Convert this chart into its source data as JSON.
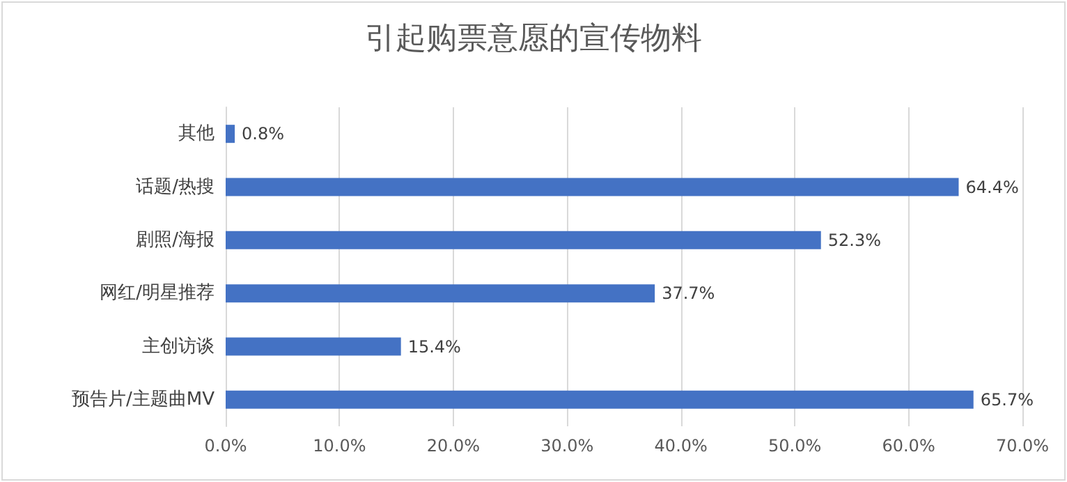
{
  "chart_data": {
    "type": "bar",
    "orientation": "horizontal",
    "title": "引起购票意愿的宣传物料",
    "categories": [
      "其他",
      "话题/热搜",
      "剧照/海报",
      "网红/明星推荐",
      "主创访谈",
      "预告片/主题曲MV"
    ],
    "values": [
      0.8,
      64.4,
      52.3,
      37.7,
      15.4,
      65.7
    ],
    "value_labels": [
      "0.8%",
      "64.4%",
      "52.3%",
      "37.7%",
      "15.4%",
      "65.7%"
    ],
    "color": "#4472c4",
    "xlim": [
      0,
      70
    ],
    "xticks": [
      {
        "value": 0,
        "label": "0.0%"
      },
      {
        "value": 10,
        "label": "10.0%"
      },
      {
        "value": 20,
        "label": "20.0%"
      },
      {
        "value": 30,
        "label": "30.0%"
      },
      {
        "value": 40,
        "label": "40.0%"
      },
      {
        "value": 50,
        "label": "50.0%"
      },
      {
        "value": 60,
        "label": "60.0%"
      },
      {
        "value": 70,
        "label": "70.0%"
      }
    ],
    "grid": "x"
  }
}
